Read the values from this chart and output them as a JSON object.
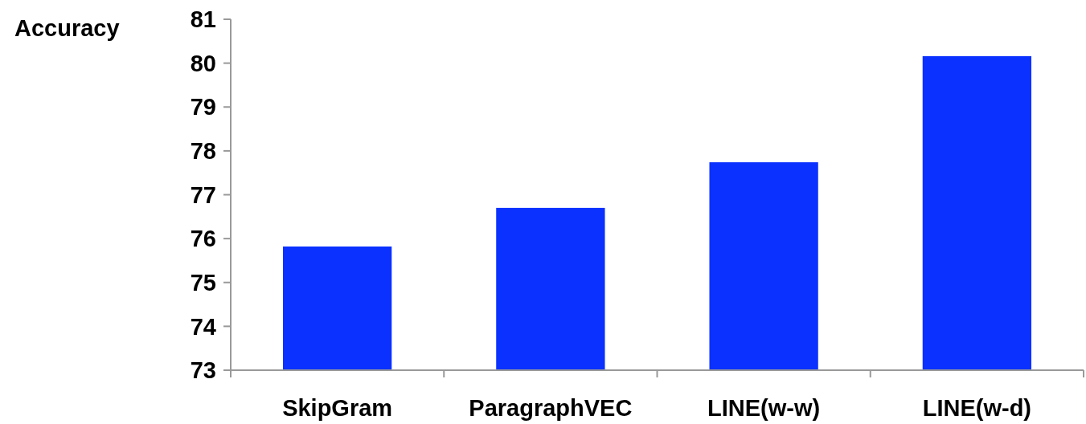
{
  "chart_data": {
    "type": "bar",
    "ylabel": "Accuracy",
    "categories": [
      "SkipGram",
      "ParagraphVEC",
      "LINE(w-w)",
      "LINE(w-d)"
    ],
    "values": [
      75.82,
      76.7,
      77.74,
      80.16
    ],
    "color": "#0a31ff",
    "ylim": [
      73,
      81
    ],
    "yticks": [
      73,
      74,
      75,
      76,
      77,
      78,
      79,
      80,
      81
    ],
    "grid": false
  }
}
